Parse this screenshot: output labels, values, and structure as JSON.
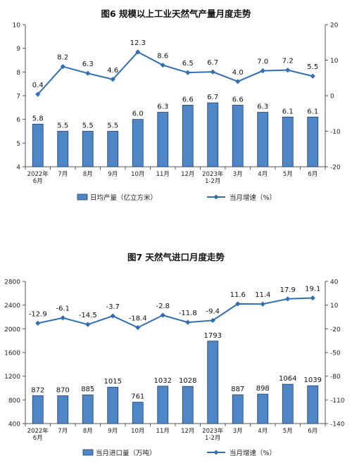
{
  "chart_data": [
    {
      "type": "bar",
      "title": "图6  规模以上工业天然气产量月度走势",
      "categories": [
        "2022年\n6月",
        "7月",
        "8月",
        "9月",
        "10月",
        "11月",
        "12月",
        "2023年\n1-2月",
        "3月",
        "4月",
        "5月",
        "6月"
      ],
      "series": [
        {
          "name": "日均产量（亿立方米）",
          "type": "bar",
          "axis": "left",
          "values": [
            5.8,
            5.5,
            5.5,
            5.5,
            6.0,
            6.3,
            6.6,
            6.7,
            6.6,
            6.3,
            6.1,
            6.1
          ]
        },
        {
          "name": "当月增速（%）",
          "type": "line",
          "axis": "right",
          "values": [
            0.4,
            8.2,
            6.3,
            4.6,
            12.3,
            8.6,
            6.5,
            6.7,
            4.0,
            7.0,
            7.2,
            5.5
          ]
        }
      ],
      "ylim_left": [
        4,
        10
      ],
      "yticks_left": [
        4,
        5,
        6,
        7,
        8,
        9,
        10
      ],
      "ylim_right": [
        -20,
        20
      ],
      "yticks_right": [
        -20,
        -10,
        0,
        10,
        20
      ],
      "legend_position": "bottom",
      "grid": false,
      "colors": {
        "bar": "#4f86c6",
        "line": "#2f6eb5"
      }
    },
    {
      "type": "bar",
      "title": "图7  天然气进口月度走势",
      "categories": [
        "2022年\n6月",
        "7月",
        "8月",
        "9月",
        "10月",
        "11月",
        "12月",
        "2023年\n1-2月",
        "3月",
        "4月",
        "5月",
        "6月"
      ],
      "series": [
        {
          "name": "当月进口量（万吨）",
          "type": "bar",
          "axis": "left",
          "values": [
            872,
            870,
            885,
            1015,
            761,
            1032,
            1028,
            1793,
            887,
            898,
            1064,
            1039
          ]
        },
        {
          "name": "当月增速（%）",
          "type": "line",
          "axis": "right",
          "values": [
            -12.9,
            -6.1,
            -14.5,
            -3.7,
            -18.4,
            -2.8,
            -11.8,
            -9.4,
            11.6,
            11.4,
            17.9,
            19.1
          ]
        }
      ],
      "ylim_left": [
        400,
        2800
      ],
      "yticks_left": [
        400,
        800,
        1200,
        1600,
        2000,
        2400,
        2800
      ],
      "ylim_right": [
        -140,
        40
      ],
      "yticks_right": [
        -140,
        -110,
        -80,
        -50,
        -20,
        10,
        40
      ],
      "legend_position": "bottom",
      "grid": false,
      "colors": {
        "bar": "#4f86c6",
        "line": "#2f6eb5"
      }
    }
  ]
}
